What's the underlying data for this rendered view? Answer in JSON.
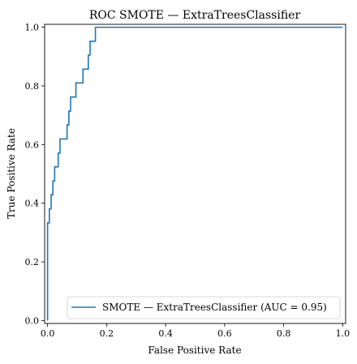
{
  "chart_data": {
    "type": "line",
    "title": "ROC SMOTE — ExtraTreesClassifier",
    "xlabel": "False Positive Rate",
    "ylabel": "True Positive Rate",
    "xlim": [
      -0.01,
      1.01
    ],
    "ylim": [
      -0.01,
      1.01
    ],
    "xticks": [
      0.0,
      0.2,
      0.4,
      0.6,
      0.8,
      1.0
    ],
    "yticks": [
      0.0,
      0.2,
      0.4,
      0.6,
      0.8,
      1.0
    ],
    "xtick_labels": [
      "0.0",
      "0.2",
      "0.4",
      "0.6",
      "0.8",
      "1.0"
    ],
    "ytick_labels": [
      "0.0",
      "0.2",
      "0.4",
      "0.6",
      "0.8",
      "1.0"
    ],
    "grid": false,
    "legend_position": "lower-right",
    "series": [
      {
        "name": "SMOTE — ExtraTreesClassifier (AUC = 0.95)",
        "color": "#1f77b4",
        "x": [
          0.0,
          0.0,
          0.006,
          0.006,
          0.012,
          0.012,
          0.018,
          0.018,
          0.024,
          0.024,
          0.036,
          0.036,
          0.042,
          0.042,
          0.066,
          0.066,
          0.072,
          0.072,
          0.078,
          0.078,
          0.084,
          0.084,
          0.096,
          0.096,
          0.12,
          0.12,
          0.138,
          0.138,
          0.144,
          0.144,
          0.162,
          0.162,
          1.0
        ],
        "y": [
          0.0,
          0.333,
          0.333,
          0.381,
          0.381,
          0.429,
          0.429,
          0.476,
          0.476,
          0.524,
          0.524,
          0.571,
          0.571,
          0.619,
          0.619,
          0.667,
          0.667,
          0.714,
          0.714,
          0.762,
          0.762,
          0.762,
          0.762,
          0.81,
          0.81,
          0.857,
          0.857,
          0.905,
          0.905,
          0.952,
          0.952,
          1.0,
          1.0
        ]
      }
    ]
  }
}
